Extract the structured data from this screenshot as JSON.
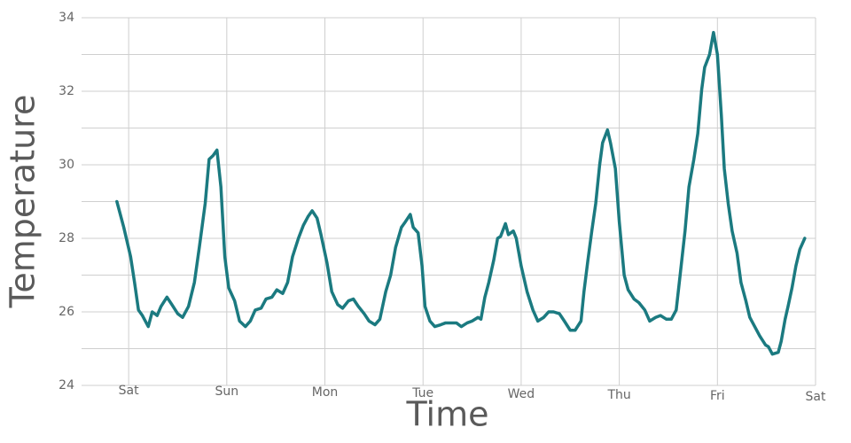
{
  "chart_data": {
    "type": "line",
    "x_label": "Time",
    "y_label": "Temperature",
    "x": [
      -0.12,
      -0.05,
      0.02,
      0.06,
      0.1,
      0.14,
      0.2,
      0.24,
      0.29,
      0.33,
      0.39,
      0.44,
      0.5,
      0.55,
      0.61,
      0.67,
      0.72,
      0.78,
      0.82,
      0.86,
      0.9,
      0.94,
      0.98,
      1.02,
      1.08,
      1.13,
      1.19,
      1.24,
      1.29,
      1.35,
      1.4,
      1.46,
      1.51,
      1.57,
      1.62,
      1.67,
      1.73,
      1.78,
      1.83,
      1.87,
      1.92,
      1.96,
      2.02,
      2.07,
      2.13,
      2.18,
      2.24,
      2.29,
      2.34,
      2.4,
      2.45,
      2.51,
      2.56,
      2.62,
      2.67,
      2.72,
      2.78,
      2.82,
      2.87,
      2.9,
      2.95,
      2.99,
      3.02,
      3.07,
      3.12,
      3.18,
      3.23,
      3.29,
      3.34,
      3.39,
      3.45,
      3.5,
      3.56,
      3.59,
      3.63,
      3.67,
      3.72,
      3.76,
      3.79,
      3.84,
      3.87,
      3.92,
      3.95,
      4.0,
      4.06,
      4.12,
      4.17,
      4.23,
      4.28,
      4.33,
      4.39,
      4.44,
      4.5,
      4.55,
      4.61,
      4.64,
      4.68,
      4.72,
      4.76,
      4.8,
      4.83,
      4.88,
      4.91,
      4.96,
      5.0,
      5.05,
      5.09,
      5.15,
      5.2,
      5.26,
      5.31,
      5.37,
      5.42,
      5.48,
      5.53,
      5.58,
      5.62,
      5.67,
      5.71,
      5.76,
      5.8,
      5.84,
      5.87,
      5.92,
      5.96,
      6.0,
      6.04,
      6.07,
      6.11,
      6.15,
      6.2,
      6.24,
      6.29,
      6.33,
      6.38,
      6.43,
      6.49,
      6.52,
      6.56,
      6.62,
      6.65,
      6.69,
      6.72,
      6.76,
      6.8,
      6.84,
      6.89
    ],
    "series": [
      {
        "color": "#1b7a80",
        "values": [
          29.0,
          28.3,
          27.5,
          26.8,
          26.05,
          25.9,
          25.6,
          26.0,
          25.9,
          26.15,
          26.4,
          26.2,
          25.95,
          25.85,
          26.15,
          26.8,
          27.75,
          28.95,
          30.15,
          30.25,
          30.4,
          29.4,
          27.5,
          26.65,
          26.3,
          25.75,
          25.6,
          25.75,
          26.05,
          26.1,
          26.35,
          26.4,
          26.6,
          26.5,
          26.8,
          27.5,
          28.0,
          28.35,
          28.6,
          28.75,
          28.55,
          28.1,
          27.35,
          26.55,
          26.2,
          26.1,
          26.3,
          26.35,
          26.15,
          25.95,
          25.75,
          25.65,
          25.8,
          26.55,
          27.0,
          27.75,
          28.3,
          28.45,
          28.65,
          28.3,
          28.15,
          27.25,
          26.15,
          25.75,
          25.6,
          25.65,
          25.7,
          25.7,
          25.7,
          25.6,
          25.7,
          25.75,
          25.85,
          25.8,
          26.4,
          26.8,
          27.4,
          28.0,
          28.05,
          28.4,
          28.1,
          28.2,
          28.0,
          27.25,
          26.55,
          26.05,
          25.75,
          25.85,
          26.0,
          26.0,
          25.95,
          25.75,
          25.5,
          25.5,
          25.75,
          26.55,
          27.4,
          28.2,
          28.95,
          30.0,
          30.6,
          30.95,
          30.6,
          29.9,
          28.45,
          27.0,
          26.6,
          26.35,
          26.25,
          26.05,
          25.75,
          25.85,
          25.9,
          25.8,
          25.8,
          26.05,
          27.0,
          28.2,
          29.4,
          30.15,
          30.85,
          32.05,
          32.65,
          33.0,
          33.6,
          33.0,
          31.35,
          29.9,
          28.95,
          28.2,
          27.6,
          26.8,
          26.3,
          25.85,
          25.6,
          25.35,
          25.1,
          25.05,
          24.85,
          24.9,
          25.2,
          25.8,
          26.15,
          26.65,
          27.25,
          27.7,
          28.0
        ]
      }
    ],
    "xlim": [
      -0.48,
      7
    ],
    "xticks": [
      {
        "value": 0,
        "label": "Sat"
      },
      {
        "value": 1,
        "label": "Sun"
      },
      {
        "value": 2,
        "label": "Mon"
      },
      {
        "value": 3,
        "label": "Tue"
      },
      {
        "value": 4,
        "label": "Wed"
      },
      {
        "value": 5,
        "label": "Thu"
      },
      {
        "value": 6,
        "label": "Fri"
      },
      {
        "value": 7,
        "label": "Sat"
      }
    ],
    "ylim": [
      24,
      34
    ],
    "yticks": [
      24,
      26,
      28,
      30,
      32,
      34
    ],
    "minor_yticks": [
      25,
      27,
      29,
      31,
      33
    ],
    "grid": true
  }
}
